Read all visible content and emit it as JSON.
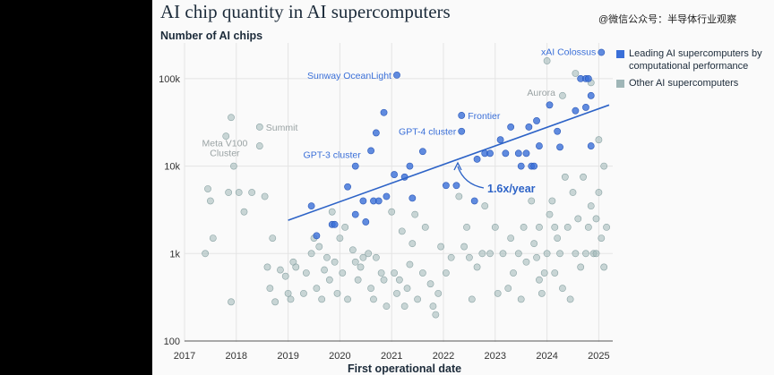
{
  "header": {
    "title": "AI chip quantity in AI supercomputers",
    "watermark": "@微信公众号：半导体行业观察"
  },
  "legend": [
    {
      "label": "Leading AI supercomputers by computational performance",
      "color": "#3a6fd8"
    },
    {
      "label": "Other AI supercomputers",
      "color": "#9fb6b7"
    }
  ],
  "chart_data": {
    "type": "scatter",
    "xlabel": "First operational date",
    "ylabel": "Number of AI chips",
    "x_ticks": [
      2017,
      2018,
      2019,
      2020,
      2021,
      2022,
      2023,
      2024,
      2025
    ],
    "y_ticks": [
      {
        "value": 100,
        "label": "100"
      },
      {
        "value": 1000,
        "label": "1k"
      },
      {
        "value": 10000,
        "label": "10k"
      },
      {
        "value": 100000,
        "label": "100k"
      }
    ],
    "xlim": [
      2017,
      2025.2
    ],
    "ylim": [
      100,
      250000
    ],
    "y_scale": "log",
    "grid": true,
    "legend_position": "top-right",
    "trend": {
      "label": "1.6x/year",
      "x": [
        2019,
        2025.2
      ],
      "y": [
        2400,
        50000
      ]
    },
    "series": [
      {
        "name": "Leading AI supercomputers by computational performance",
        "color": "#3a6fd8",
        "points": [
          [
            2019.45,
            3500
          ],
          [
            2019.55,
            1600
          ],
          [
            2019.85,
            2150
          ],
          [
            2019.9,
            2150
          ],
          [
            2020.15,
            5800
          ],
          [
            2020.3,
            10000
          ],
          [
            2020.3,
            2800
          ],
          [
            2020.45,
            4000
          ],
          [
            2020.5,
            2300
          ],
          [
            2020.6,
            15000
          ],
          [
            2020.65,
            4000
          ],
          [
            2020.7,
            24000
          ],
          [
            2020.75,
            4000
          ],
          [
            2020.85,
            41000
          ],
          [
            2020.9,
            4500
          ],
          [
            2021.05,
            8000
          ],
          [
            2021.1,
            110000
          ],
          [
            2021.25,
            7500
          ],
          [
            2021.35,
            10000
          ],
          [
            2021.4,
            4300
          ],
          [
            2021.6,
            14700
          ],
          [
            2022.05,
            6000
          ],
          [
            2022.25,
            6000
          ],
          [
            2022.35,
            38000
          ],
          [
            2022.35,
            25000
          ],
          [
            2022.6,
            4000
          ],
          [
            2022.65,
            12000
          ],
          [
            2022.8,
            14000
          ],
          [
            2022.9,
            14000
          ],
          [
            2023.1,
            20000
          ],
          [
            2023.2,
            14000
          ],
          [
            2023.3,
            28000
          ],
          [
            2023.45,
            14000
          ],
          [
            2023.5,
            10000
          ],
          [
            2023.6,
            14000
          ],
          [
            2023.65,
            28000
          ],
          [
            2023.7,
            10000
          ],
          [
            2023.75,
            10000
          ],
          [
            2023.8,
            33000
          ],
          [
            2023.85,
            17000
          ],
          [
            2024.05,
            50000
          ],
          [
            2024.2,
            25000
          ],
          [
            2024.25,
            16500
          ],
          [
            2024.55,
            43000
          ],
          [
            2024.65,
            100000
          ],
          [
            2024.75,
            100000
          ],
          [
            2024.75,
            47000
          ],
          [
            2024.8,
            100000
          ],
          [
            2024.85,
            64000
          ],
          [
            2024.85,
            17000
          ],
          [
            2025.05,
            200000
          ]
        ]
      },
      {
        "name": "Other AI supercomputers",
        "color": "#9fb6b7",
        "points": [
          [
            2017.4,
            1000
          ],
          [
            2017.45,
            5500
          ],
          [
            2017.5,
            4000
          ],
          [
            2017.55,
            1500
          ],
          [
            2017.8,
            22000
          ],
          [
            2017.85,
            5000
          ],
          [
            2017.9,
            36000
          ],
          [
            2017.9,
            280
          ],
          [
            2017.95,
            10000
          ],
          [
            2018.05,
            5000
          ],
          [
            2018.15,
            3000
          ],
          [
            2018.3,
            5000
          ],
          [
            2018.45,
            28000
          ],
          [
            2018.45,
            17000
          ],
          [
            2018.55,
            4500
          ],
          [
            2018.6,
            700
          ],
          [
            2018.65,
            400
          ],
          [
            2018.7,
            1500
          ],
          [
            2018.75,
            280
          ],
          [
            2018.85,
            650
          ],
          [
            2018.95,
            550
          ],
          [
            2019.0,
            350
          ],
          [
            2019.05,
            300
          ],
          [
            2019.1,
            800
          ],
          [
            2019.15,
            700
          ],
          [
            2019.3,
            350
          ],
          [
            2019.35,
            600
          ],
          [
            2019.45,
            1000
          ],
          [
            2019.5,
            1500
          ],
          [
            2019.55,
            400
          ],
          [
            2019.6,
            1200
          ],
          [
            2019.65,
            300
          ],
          [
            2019.7,
            650
          ],
          [
            2019.75,
            900
          ],
          [
            2019.8,
            500
          ],
          [
            2019.85,
            3000
          ],
          [
            2019.9,
            800
          ],
          [
            2019.95,
            350
          ],
          [
            2020.0,
            1500
          ],
          [
            2020.05,
            600
          ],
          [
            2020.1,
            2000
          ],
          [
            2020.15,
            300
          ],
          [
            2020.25,
            1100
          ],
          [
            2020.3,
            800
          ],
          [
            2020.35,
            500
          ],
          [
            2020.4,
            700
          ],
          [
            2020.45,
            900
          ],
          [
            2020.55,
            1000
          ],
          [
            2020.6,
            400
          ],
          [
            2020.65,
            300
          ],
          [
            2020.7,
            900
          ],
          [
            2020.8,
            600
          ],
          [
            2020.85,
            500
          ],
          [
            2020.9,
            250
          ],
          [
            2021.0,
            3000
          ],
          [
            2021.05,
            600
          ],
          [
            2021.1,
            350
          ],
          [
            2021.15,
            500
          ],
          [
            2021.2,
            1800
          ],
          [
            2021.25,
            250
          ],
          [
            2021.3,
            400
          ],
          [
            2021.35,
            750
          ],
          [
            2021.4,
            1300
          ],
          [
            2021.45,
            2800
          ],
          [
            2021.5,
            300
          ],
          [
            2021.6,
            600
          ],
          [
            2021.65,
            2000
          ],
          [
            2021.75,
            450
          ],
          [
            2021.8,
            250
          ],
          [
            2021.85,
            200
          ],
          [
            2021.9,
            350
          ],
          [
            2021.95,
            1200
          ],
          [
            2022.05,
            600
          ],
          [
            2022.15,
            900
          ],
          [
            2022.3,
            4500
          ],
          [
            2022.4,
            1200
          ],
          [
            2022.45,
            2000
          ],
          [
            2022.5,
            900
          ],
          [
            2022.55,
            300
          ],
          [
            2022.65,
            700
          ],
          [
            2022.75,
            1000
          ],
          [
            2022.8,
            3500
          ],
          [
            2022.9,
            1000
          ],
          [
            2023.0,
            2000
          ],
          [
            2023.05,
            350
          ],
          [
            2023.15,
            1000
          ],
          [
            2023.25,
            400
          ],
          [
            2023.3,
            1500
          ],
          [
            2023.35,
            600
          ],
          [
            2023.45,
            1000
          ],
          [
            2023.5,
            300
          ],
          [
            2023.55,
            2000
          ],
          [
            2023.6,
            800
          ],
          [
            2023.7,
            4000
          ],
          [
            2023.75,
            1300
          ],
          [
            2023.8,
            900
          ],
          [
            2023.85,
            2000
          ],
          [
            2023.9,
            350
          ],
          [
            2024.0,
            1000
          ],
          [
            2024.05,
            2800
          ],
          [
            2024.1,
            4000
          ],
          [
            2024.15,
            600
          ],
          [
            2024.2,
            1500
          ],
          [
            2024.25,
            1000
          ],
          [
            2024.3,
            400
          ],
          [
            2024.35,
            7500
          ],
          [
            2024.4,
            2000
          ],
          [
            2024.45,
            300
          ],
          [
            2024.5,
            5000
          ],
          [
            2024.55,
            1000
          ],
          [
            2024.6,
            2500
          ],
          [
            2024.65,
            700
          ],
          [
            2024.7,
            7500
          ],
          [
            2024.75,
            1000
          ],
          [
            2024.8,
            2000
          ],
          [
            2024.85,
            3500
          ],
          [
            2024.9,
            1000
          ],
          [
            2024.95,
            2500
          ],
          [
            2025.0,
            20000
          ],
          [
            2025.05,
            1500
          ],
          [
            2025.1,
            10000
          ],
          [
            2025.1,
            700
          ],
          [
            2025.15,
            2000
          ],
          [
            2024.3,
            64000
          ],
          [
            2024.55,
            115000
          ],
          [
            2024.85,
            90000
          ],
          [
            2024.95,
            1000
          ],
          [
            2025.0,
            5000
          ],
          [
            2024.0,
            160000
          ],
          [
            2024.15,
            2000
          ],
          [
            2023.95,
            600
          ],
          [
            2023.85,
            500
          ]
        ]
      }
    ],
    "annotations": [
      {
        "text": "xAI Colossus",
        "x": 2025.05,
        "y": 200000,
        "color": "#3a6fd8"
      },
      {
        "text": "Sunway OceanLight",
        "x": 2021.1,
        "y": 110000,
        "color": "#3a6fd8"
      },
      {
        "text": "Frontier",
        "x": 2022.35,
        "y": 38000,
        "color": "#3a6fd8"
      },
      {
        "text": "GPT-4 cluster",
        "x": 2022.35,
        "y": 25000,
        "color": "#3a6fd8"
      },
      {
        "text": "GPT-3 cluster",
        "x": 2020.3,
        "y": 10000,
        "color": "#3a6fd8"
      },
      {
        "text": "Aurora",
        "x": 2024.3,
        "y": 64000,
        "color": "#9aa3a4"
      },
      {
        "text": "Summit",
        "x": 2018.45,
        "y": 28000,
        "color": "#9aa3a4"
      },
      {
        "text": "Meta V100 Cluster",
        "x": 2017.95,
        "y": 10000,
        "color": "#9aa3a4"
      }
    ]
  }
}
